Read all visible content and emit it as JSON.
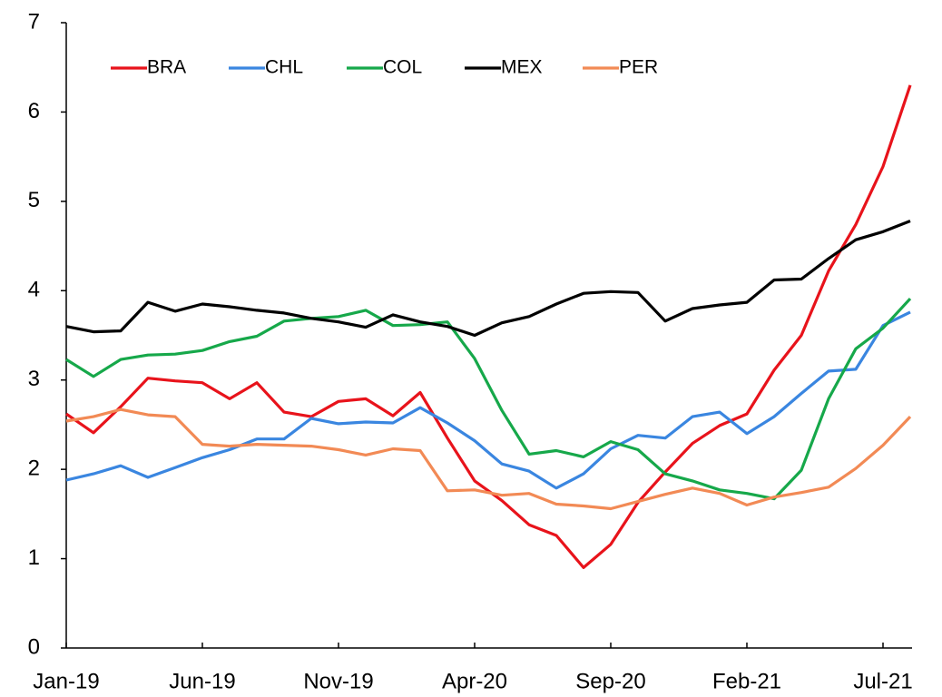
{
  "chart_data": {
    "type": "line",
    "categories": [
      "Jan-19",
      null,
      null,
      null,
      null,
      "Jun-19",
      null,
      null,
      null,
      null,
      "Nov-19",
      null,
      null,
      null,
      null,
      "Apr-20",
      null,
      null,
      null,
      null,
      "Sep-20",
      null,
      null,
      null,
      null,
      "Feb-21",
      null,
      null,
      null,
      null,
      "Jul-21",
      null
    ],
    "series": [
      {
        "name": "BRA",
        "color": "#e8131b",
        "values": [
          2.62,
          2.41,
          2.7,
          3.02,
          2.99,
          2.97,
          2.79,
          2.97,
          2.64,
          2.59,
          2.76,
          2.79,
          2.6,
          2.86,
          2.35,
          1.87,
          1.65,
          1.38,
          1.26,
          0.9,
          1.16,
          1.63,
          1.97,
          2.29,
          2.49,
          2.62,
          3.11,
          3.5,
          4.22,
          4.74,
          5.39,
          6.3
        ]
      },
      {
        "name": "CHL",
        "color": "#3a86e0",
        "values": [
          1.88,
          1.95,
          2.04,
          1.91,
          2.02,
          2.13,
          2.22,
          2.34,
          2.34,
          2.57,
          2.51,
          2.53,
          2.52,
          2.69,
          2.52,
          2.32,
          2.06,
          1.98,
          1.79,
          1.95,
          2.23,
          2.38,
          2.35,
          2.59,
          2.64,
          2.4,
          2.59,
          2.85,
          3.1,
          3.12,
          3.61,
          3.76
        ]
      },
      {
        "name": "COL",
        "color": "#16a84a",
        "values": [
          3.23,
          3.04,
          3.23,
          3.28,
          3.29,
          3.33,
          3.43,
          3.49,
          3.66,
          3.69,
          3.71,
          3.78,
          3.61,
          3.62,
          3.65,
          3.24,
          2.66,
          2.17,
          2.21,
          2.14,
          2.31,
          2.22,
          1.95,
          1.87,
          1.77,
          1.73,
          1.67,
          1.99,
          2.79,
          3.35,
          3.58,
          3.91
        ]
      },
      {
        "name": "MEX",
        "color": "#000000",
        "values": [
          3.6,
          3.54,
          3.55,
          3.87,
          3.77,
          3.85,
          3.82,
          3.78,
          3.75,
          3.69,
          3.65,
          3.59,
          3.73,
          3.65,
          3.6,
          3.5,
          3.64,
          3.71,
          3.85,
          3.97,
          3.99,
          3.98,
          3.66,
          3.8,
          3.84,
          3.87,
          4.12,
          4.13,
          4.36,
          4.57,
          4.66,
          4.78
        ]
      },
      {
        "name": "PER",
        "color": "#f28a55",
        "values": [
          2.54,
          2.59,
          2.67,
          2.61,
          2.59,
          2.28,
          2.26,
          2.28,
          2.27,
          2.26,
          2.22,
          2.16,
          2.23,
          2.21,
          1.76,
          1.77,
          1.71,
          1.73,
          1.61,
          1.59,
          1.56,
          1.64,
          1.72,
          1.79,
          1.73,
          1.6,
          1.69,
          1.74,
          1.8,
          2.01,
          2.27,
          2.59
        ]
      }
    ],
    "ylim": [
      0,
      7
    ],
    "yticks": [
      0,
      1,
      2,
      3,
      4,
      5,
      6,
      7
    ],
    "grid": false,
    "legend": "upper left"
  }
}
